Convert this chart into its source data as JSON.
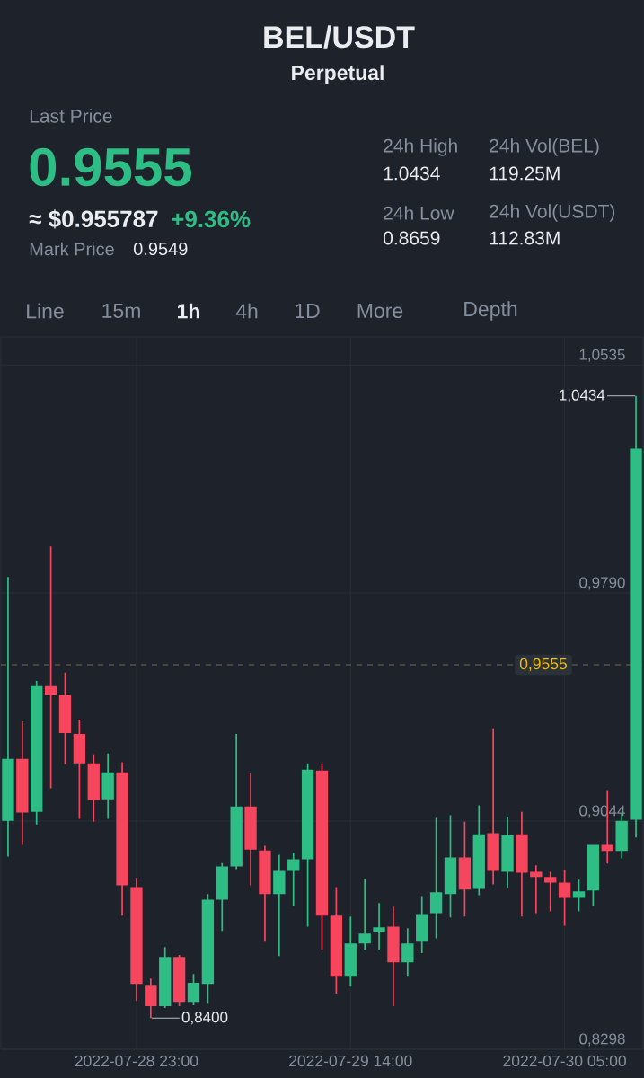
{
  "chart_data": {
    "type": "candlestick",
    "title": "BEL/USDT",
    "subtitle": "Perpetual",
    "x": [
      "2022-07-28T14:00",
      "2022-07-28T15:00",
      "2022-07-28T16:00",
      "2022-07-28T17:00",
      "2022-07-28T18:00",
      "2022-07-28T19:00",
      "2022-07-28T20:00",
      "2022-07-28T21:00",
      "2022-07-28T22:00",
      "2022-07-28T23:00",
      "2022-07-29T00:00",
      "2022-07-29T01:00",
      "2022-07-29T02:00",
      "2022-07-29T03:00",
      "2022-07-29T04:00",
      "2022-07-29T05:00",
      "2022-07-29T06:00",
      "2022-07-29T07:00",
      "2022-07-29T08:00",
      "2022-07-29T09:00",
      "2022-07-29T10:00",
      "2022-07-29T11:00",
      "2022-07-29T12:00",
      "2022-07-29T13:00",
      "2022-07-29T14:00",
      "2022-07-29T15:00",
      "2022-07-29T16:00",
      "2022-07-29T17:00",
      "2022-07-29T18:00",
      "2022-07-29T19:00",
      "2022-07-29T20:00",
      "2022-07-29T21:00",
      "2022-07-29T22:00",
      "2022-07-29T23:00",
      "2022-07-30T00:00",
      "2022-07-30T01:00",
      "2022-07-30T02:00",
      "2022-07-30T03:00",
      "2022-07-30T04:00",
      "2022-07-30T05:00",
      "2022-07-30T06:00",
      "2022-07-30T07:00",
      "2022-07-30T08:00",
      "2022-07-30T09:00",
      "2022-07-30T10:00"
    ],
    "ohlc": [
      [
        0.9045,
        0.9842,
        0.8928,
        0.9247
      ],
      [
        0.9247,
        0.937,
        0.8966,
        0.9072
      ],
      [
        0.9074,
        0.9502,
        0.9033,
        0.9485
      ],
      [
        0.9485,
        0.9942,
        0.9151,
        0.9455
      ],
      [
        0.9455,
        0.9529,
        0.923,
        0.9332
      ],
      [
        0.9329,
        0.9376,
        0.9051,
        0.9233
      ],
      [
        0.9233,
        0.9262,
        0.9042,
        0.9113
      ],
      [
        0.9115,
        0.9265,
        0.9051,
        0.9203
      ],
      [
        0.9203,
        0.9236,
        0.8735,
        0.8834
      ],
      [
        0.8828,
        0.8858,
        0.8456,
        0.8512
      ],
      [
        0.8506,
        0.8529,
        0.84,
        0.8439
      ],
      [
        0.8439,
        0.8632,
        0.8433,
        0.86
      ],
      [
        0.86,
        0.8606,
        0.8439,
        0.8453
      ],
      [
        0.8453,
        0.8544,
        0.8442,
        0.8515
      ],
      [
        0.8512,
        0.8805,
        0.8447,
        0.8787
      ],
      [
        0.8787,
        0.8907,
        0.8685,
        0.8896
      ],
      [
        0.8896,
        0.9329,
        0.8887,
        0.9092
      ],
      [
        0.9092,
        0.92,
        0.8834,
        0.8951
      ],
      [
        0.8948,
        0.8963,
        0.865,
        0.8805
      ],
      [
        0.8805,
        0.8934,
        0.8603,
        0.8881
      ],
      [
        0.8881,
        0.894,
        0.8767,
        0.8919
      ],
      [
        0.8919,
        0.9233,
        0.8699,
        0.9212
      ],
      [
        0.9209,
        0.9233,
        0.8623,
        0.8735
      ],
      [
        0.8735,
        0.8828,
        0.848,
        0.8535
      ],
      [
        0.8535,
        0.8732,
        0.8503,
        0.8644
      ],
      [
        0.8644,
        0.8855,
        0.8623,
        0.8676
      ],
      [
        0.8682,
        0.8776,
        0.8623,
        0.8697
      ],
      [
        0.8699,
        0.8764,
        0.8439,
        0.8582
      ],
      [
        0.8582,
        0.8694,
        0.8535,
        0.8644
      ],
      [
        0.865,
        0.8799,
        0.8612,
        0.874
      ],
      [
        0.8743,
        0.9054,
        0.8661,
        0.8811
      ],
      [
        0.8805,
        0.9063,
        0.8729,
        0.8925
      ],
      [
        0.8925,
        0.9042,
        0.8732,
        0.882
      ],
      [
        0.8822,
        0.9095,
        0.8802,
        0.9001
      ],
      [
        0.9004,
        0.9347,
        0.8837,
        0.8881
      ],
      [
        0.8878,
        0.9057,
        0.8825,
        0.8998
      ],
      [
        0.9001,
        0.9074,
        0.8732,
        0.8875
      ],
      [
        0.8878,
        0.8899,
        0.8743,
        0.8861
      ],
      [
        0.8861,
        0.8878,
        0.8749,
        0.8843
      ],
      [
        0.8843,
        0.8884,
        0.8702,
        0.8793
      ],
      [
        0.8793,
        0.8852,
        0.8749,
        0.8814
      ],
      [
        0.8817,
        0.8966,
        0.8767,
        0.8966
      ],
      [
        0.8966,
        0.9145,
        0.8905,
        0.8946
      ],
      [
        0.8946,
        0.9069,
        0.8922,
        0.9045
      ],
      [
        0.9048,
        1.0434,
        0.899,
        1.0261
      ]
    ],
    "colors": [
      "#2ebd85",
      "#f6465d",
      "#2ebd85",
      "#f6465d",
      "#f6465d",
      "#f6465d",
      "#f6465d",
      "#2ebd85",
      "#f6465d",
      "#f6465d",
      "#f6465d",
      "#2ebd85",
      "#f6465d",
      "#2ebd85",
      "#2ebd85",
      "#2ebd85",
      "#2ebd85",
      "#f6465d",
      "#f6465d",
      "#2ebd85",
      "#2ebd85",
      "#2ebd85",
      "#f6465d",
      "#f6465d",
      "#2ebd85",
      "#2ebd85",
      "#2ebd85",
      "#f6465d",
      "#2ebd85",
      "#2ebd85",
      "#2ebd85",
      "#2ebd85",
      "#f6465d",
      "#2ebd85",
      "#f6465d",
      "#2ebd85",
      "#f6465d",
      "#f6465d",
      "#f6465d",
      "#f6465d",
      "#2ebd85",
      "#2ebd85",
      "#f6465d",
      "#2ebd85",
      "#2ebd85"
    ],
    "xlim": [
      "2022-07-28T13:30",
      "2022-07-30T10:30"
    ],
    "xticks": [
      {
        "value": "2022-07-28T23:00",
        "label": "2022-07-28 23:00"
      },
      {
        "value": "2022-07-29T14:00",
        "label": "2022-07-29 14:00"
      },
      {
        "value": "2022-07-30T05:00",
        "label": "2022-07-30 05:00"
      }
    ],
    "ylim": [
      0.8298,
      1.0627
    ],
    "yticks": [
      {
        "value": 0.8298,
        "label": "0,8298"
      },
      {
        "value": 0.9044,
        "label": "0,9044"
      },
      {
        "value": 0.979,
        "label": "0,9790"
      },
      {
        "value": 1.0535,
        "label": "1,0535"
      }
    ],
    "grid": true,
    "ref_lines": [
      {
        "axis": "y",
        "value": 0.9555,
        "label": "0,9555",
        "color": "#7a6a42",
        "line_style": "dashed"
      }
    ],
    "annotations": [
      "Last Price",
      "0.9555",
      "≈ $0.955787",
      "+9.36%",
      "Mark Price",
      "0.9549",
      "24h High",
      "1.0434",
      "24h Vol(BEL)",
      "119.25M",
      "24h Low",
      "0.8659",
      "24h Vol(USDT)",
      "112.83M",
      "Line",
      "15m",
      "1h",
      "4h",
      "1D",
      "More",
      "Depth",
      {
        "text": "1,0434",
        "x": "2022-07-30T10:00",
        "y": 1.0434
      },
      {
        "text": "0,8400",
        "x": "2022-07-29T00:00",
        "y": 0.84
      }
    ]
  }
}
